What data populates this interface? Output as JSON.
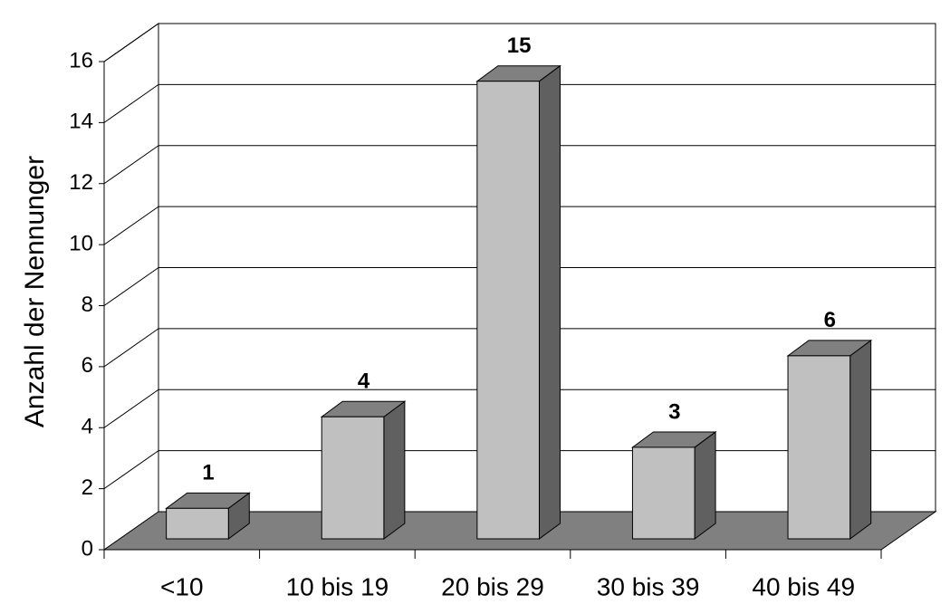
{
  "chart_data": {
    "type": "bar3d",
    "y_label": "Anzahl der Nennunger",
    "categories": [
      "<10",
      "10 bis 19",
      "20 bis 29",
      "30 bis 39",
      "40 bis 49"
    ],
    "values": [
      1,
      4,
      15,
      3,
      6
    ],
    "color": "#c0c0c0",
    "ylim": [
      0,
      16
    ],
    "yticks": [
      0,
      2,
      4,
      6,
      8,
      10,
      12,
      14,
      16
    ],
    "grid": true
  }
}
